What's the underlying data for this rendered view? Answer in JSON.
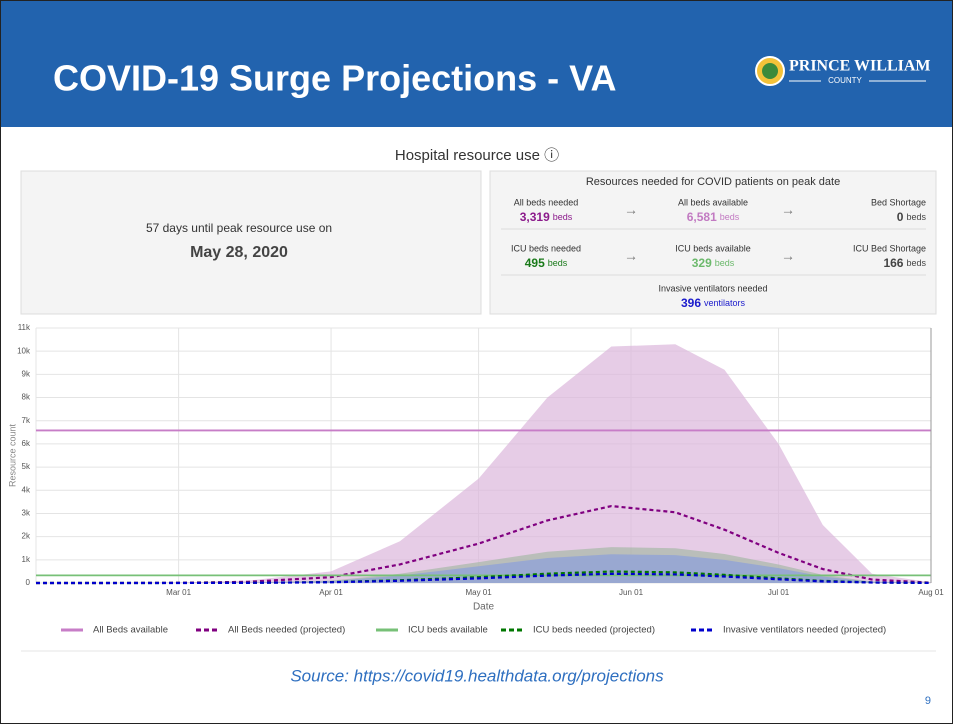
{
  "header": {
    "title": "COVID-19 Surge Projections - VA",
    "logo_name": "PRINCE WILLIAM",
    "logo_sub": "COUNTY"
  },
  "chart_heading": "Hospital resource use ⓘ",
  "peak": {
    "text": "57 days until peak resource use on",
    "date": "May 28, 2020"
  },
  "resources": {
    "title": "Resources needed for COVID patients on peak date",
    "items": [
      {
        "label": "All beds needed",
        "value": "3,319",
        "unit": "beds",
        "color": "#8b1a8b"
      },
      {
        "label": "All beds available",
        "value": "6,581",
        "unit": "beds",
        "color": "#c27ac2"
      },
      {
        "label": "Bed Shortage",
        "value": "0",
        "unit": "beds",
        "color": "#444444"
      },
      {
        "label": "ICU beds needed",
        "value": "495",
        "unit": "beds",
        "color": "#1a7a1a"
      },
      {
        "label": "ICU beds available",
        "value": "329",
        "unit": "beds",
        "color": "#6cb96c"
      },
      {
        "label": "ICU Bed Shortage",
        "value": "166",
        "unit": "beds",
        "color": "#444444"
      },
      {
        "label": "Invasive ventilators needed",
        "value": "396",
        "unit": "ventilators",
        "color": "#1a1acc"
      }
    ]
  },
  "chart_data": {
    "type": "line",
    "xlabel": "Date",
    "ylabel": "Resource count",
    "x": [
      "Feb 01",
      "Feb 15",
      "Mar 01",
      "Mar 15",
      "Apr 01",
      "Apr 15",
      "May 01",
      "May 15",
      "May 28",
      "Jun 10",
      "Jun 20",
      "Jul 01",
      "Jul 10",
      "Jul 20",
      "Aug 01"
    ],
    "xlim": [
      "Feb 01",
      "Aug 01"
    ],
    "xticks": [
      "Mar 01",
      "Apr 01",
      "May 01",
      "Jun 01",
      "Jul 01",
      "Aug 01"
    ],
    "ylim": [
      0,
      11000
    ],
    "yticks": [
      0,
      {
        "value": 1000,
        "label": "1k"
      },
      {
        "value": 2000,
        "label": "2k"
      },
      {
        "value": 3000,
        "label": "3k"
      },
      {
        "value": 4000,
        "label": "4k"
      },
      {
        "value": 5000,
        "label": "5k"
      },
      {
        "value": 6000,
        "label": "6k"
      },
      {
        "value": 7000,
        "label": "7k"
      },
      {
        "value": 8000,
        "label": "8k"
      },
      {
        "value": 9000,
        "label": "9k"
      },
      {
        "value": 10000,
        "label": "10k"
      },
      {
        "value": 11000,
        "label": "11k"
      }
    ],
    "grid": true,
    "series": [
      {
        "name": "All Beds available",
        "color": "#c77dc7",
        "dashed": false,
        "values": [
          6581,
          6581,
          6581,
          6581,
          6581,
          6581,
          6581,
          6581,
          6581,
          6581,
          6581,
          6581,
          6581,
          6581,
          6581
        ]
      },
      {
        "name": "All Beds needed (projected)",
        "color": "#800080",
        "dashed": true,
        "band_color": "#dcb6dc",
        "values": [
          0,
          0,
          10,
          50,
          250,
          800,
          1700,
          2700,
          3319,
          3050,
          2300,
          1300,
          600,
          150,
          10
        ],
        "upper": [
          0,
          0,
          20,
          100,
          500,
          1800,
          4500,
          8000,
          10200,
          10300,
          9200,
          6000,
          2500,
          400,
          30
        ]
      },
      {
        "name": "ICU beds available",
        "color": "#77c077",
        "dashed": false,
        "values": [
          329,
          329,
          329,
          329,
          329,
          329,
          329,
          329,
          329,
          329,
          329,
          329,
          329,
          329,
          329
        ]
      },
      {
        "name": "ICU beds needed (projected)",
        "color": "#007700",
        "dashed": true,
        "band_color": "#a6b8a6",
        "values": [
          0,
          0,
          2,
          8,
          40,
          120,
          250,
          400,
          495,
          460,
          350,
          200,
          90,
          25,
          2
        ],
        "upper": [
          0,
          0,
          5,
          20,
          100,
          400,
          900,
          1350,
          1550,
          1500,
          1250,
          800,
          350,
          60,
          5
        ]
      },
      {
        "name": "Invasive ventilators needed (projected)",
        "color": "#0000cc",
        "dashed": true,
        "band_color": "#8c9edc",
        "values": [
          0,
          0,
          1,
          6,
          32,
          95,
          200,
          320,
          396,
          370,
          280,
          160,
          70,
          20,
          1
        ],
        "upper": [
          0,
          0,
          4,
          15,
          80,
          320,
          720,
          1080,
          1240,
          1200,
          1000,
          640,
          280,
          50,
          4
        ]
      }
    ]
  },
  "source": "Source: https://covid19.healthdata.org/projections",
  "page_number": "9"
}
